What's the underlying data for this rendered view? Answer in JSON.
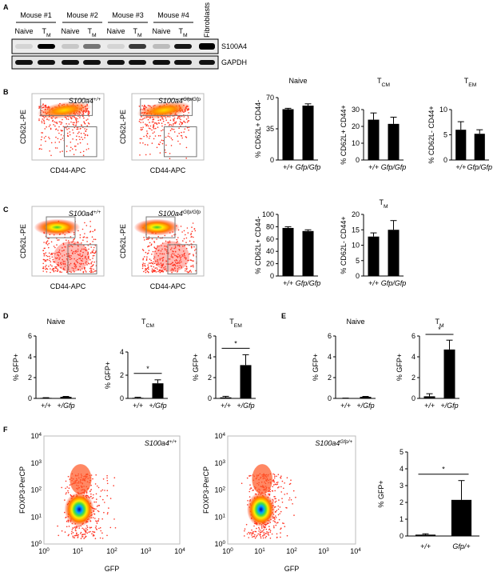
{
  "panel_letters": [
    "A",
    "B",
    "C",
    "D",
    "E",
    "F"
  ],
  "blot": {
    "mice": [
      "Mouse #1",
      "Mouse #2",
      "Mouse #3",
      "Mouse #4"
    ],
    "lanes": [
      {
        "text": "Naive"
      },
      {
        "text": "T",
        "sub": "M"
      },
      {
        "text": "Naive"
      },
      {
        "text": "T",
        "sub": "M"
      },
      {
        "text": "Naive"
      },
      {
        "text": "T",
        "sub": "M"
      },
      {
        "text": "Naive"
      },
      {
        "text": "T",
        "sub": "M"
      }
    ],
    "fibroblasts": "Fibroblasts",
    "rows": [
      "S100A4",
      "GAPDH"
    ]
  },
  "flow": {
    "B": {
      "y_label": "CD62L-PE",
      "x_label": "CD44-APC",
      "plots": [
        {
          "gene": "S100a4",
          "sup": "+/+"
        },
        {
          "gene": "S100a4",
          "sup": "Gfp/Gfp"
        }
      ]
    },
    "C": {
      "y_label": "CD62L-PE",
      "x_label": "CD44-APC",
      "plots": [
        {
          "gene": "S100a4",
          "sup": "+/+"
        },
        {
          "gene": "S100a4",
          "sup": "Gfp/Gfp"
        }
      ]
    },
    "F": {
      "y_label": "FOXP3-PerCP",
      "x_label": "GFP",
      "axis_base": "10",
      "axis_exponents": [
        0,
        1,
        2,
        3,
        4
      ],
      "plots": [
        {
          "gene": "S100a4",
          "sup": "+/+"
        },
        {
          "gene": "S100a4",
          "sup": "Gfp/+"
        }
      ]
    }
  },
  "chart_data": [
    {
      "type": "bar",
      "title": "Naive",
      "ylabel": "% CD62L+ CD44-",
      "categories": [
        "+/+",
        "Gfp/Gfp"
      ],
      "values": [
        57,
        61
      ],
      "errors": [
        1,
        2
      ],
      "color": "#000000",
      "ylim": [
        0,
        70
      ],
      "yticks": [
        0,
        35,
        70
      ]
    },
    {
      "type": "bar",
      "title": "T",
      "title_sub": "CM",
      "ylabel": "% CD62L+ CD44+",
      "categories": [
        "+/+",
        "Gfp/Gfp"
      ],
      "values": [
        24,
        21.5
      ],
      "errors": [
        4,
        4
      ],
      "color": "#000000",
      "ylim": [
        0,
        30
      ],
      "yticks": [
        0,
        10,
        20,
        30
      ]
    },
    {
      "type": "bar",
      "title": "T",
      "title_sub": "EM",
      "ylabel": "% CD62L- CD44+",
      "categories": [
        "+/+",
        "Gfp/Gfp"
      ],
      "values": [
        6,
        5.2
      ],
      "errors": [
        1.6,
        0.8
      ],
      "color": "#000000",
      "ylim": [
        0,
        10
      ],
      "yticks": [
        0,
        5,
        10
      ]
    },
    {
      "type": "bar",
      "ylabel": "% CD62L+ CD44-",
      "categories": [
        "+/+",
        "Gfp/Gfp"
      ],
      "values": [
        78,
        73
      ],
      "errors": [
        2,
        2
      ],
      "color": "#000000",
      "ylim": [
        0,
        100
      ],
      "yticks": [
        0,
        20,
        40,
        60,
        80,
        100
      ]
    },
    {
      "type": "bar",
      "title": "T",
      "title_sub": "M",
      "ylabel": "% CD62L- CD44+",
      "categories": [
        "+/+",
        "Gfp/Gfp"
      ],
      "values": [
        12.8,
        15
      ],
      "errors": [
        1.2,
        3
      ],
      "color": "#000000",
      "ylim": [
        0,
        20
      ],
      "yticks": [
        0,
        5,
        10,
        15,
        20
      ]
    },
    {
      "type": "bar",
      "title": "Naive",
      "ylabel": "% GFP+",
      "categories": [
        "+/+",
        "+/Gfp"
      ],
      "values": [
        0.05,
        0.15
      ],
      "errors": [
        0.02,
        0.04
      ],
      "color": "#000000",
      "ylim": [
        0,
        6
      ],
      "yticks": [
        0,
        2,
        4,
        6
      ]
    },
    {
      "type": "bar",
      "title": "T",
      "title_sub": "CM",
      "ylabel": "% GFP+",
      "categories": [
        "+/+",
        "+/Gfp"
      ],
      "values": [
        0.05,
        1.3
      ],
      "errors": [
        0.05,
        0.3
      ],
      "color": "#000000",
      "ylim": [
        0,
        4
      ],
      "yticks": [
        0,
        2,
        4
      ],
      "significance": "*"
    },
    {
      "type": "bar",
      "title": "T",
      "title_sub": "EM",
      "ylabel": "% GFP+",
      "categories": [
        "+/+",
        "+/Gfp"
      ],
      "values": [
        0.1,
        3.2
      ],
      "errors": [
        0.1,
        1
      ],
      "color": "#000000",
      "ylim": [
        0,
        6
      ],
      "yticks": [
        0,
        2,
        4,
        6
      ],
      "significance": "*"
    },
    {
      "type": "bar",
      "title": "Naive",
      "ylabel": "% GFP+",
      "categories": [
        "+/+",
        "+/Gfp"
      ],
      "values": [
        0.02,
        0.15
      ],
      "errors": [
        0.01,
        0.04
      ],
      "color": "#000000",
      "ylim": [
        0,
        6
      ],
      "yticks": [
        0,
        2,
        4,
        6
      ]
    },
    {
      "type": "bar",
      "title": "T",
      "title_sub": "M",
      "ylabel": "% GFP+",
      "categories": [
        "+/+",
        "+/Gfp"
      ],
      "values": [
        0.2,
        4.7
      ],
      "errors": [
        0.25,
        0.9
      ],
      "color": "#000000",
      "ylim": [
        0,
        6
      ],
      "yticks": [
        0,
        2,
        4,
        6
      ],
      "significance": "*"
    },
    {
      "type": "bar",
      "ylabel": "% GFP+",
      "categories": [
        "+/+",
        "Gfp/+"
      ],
      "values": [
        0.08,
        2.15
      ],
      "errors": [
        0.05,
        1.15
      ],
      "color": "#000000",
      "ylim": [
        0,
        5
      ],
      "yticks": [
        0,
        1,
        2,
        3,
        4,
        5
      ],
      "significance": "*"
    }
  ]
}
